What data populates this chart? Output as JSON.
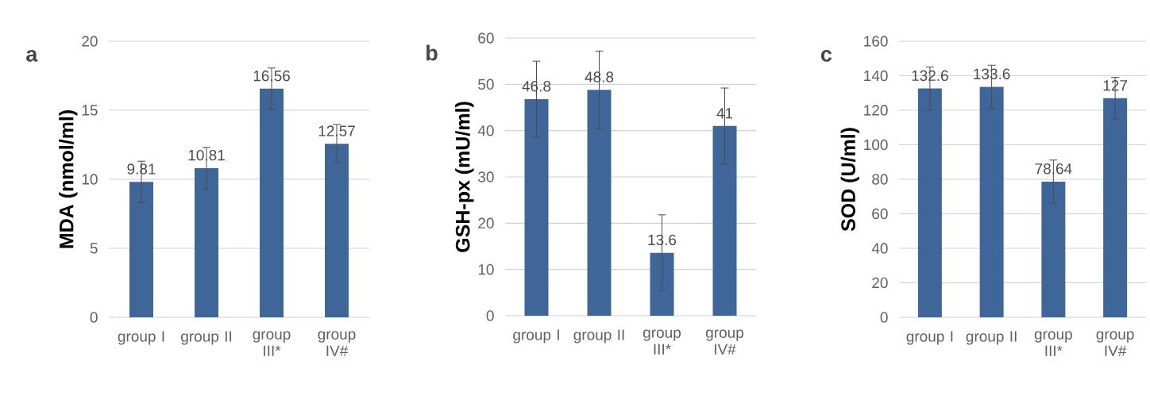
{
  "chart_data": [
    {
      "type": "bar",
      "title": "a",
      "ylabel": "MDA (nmol/ml)",
      "categories": [
        "group I",
        "group II",
        "group III*",
        "group IV#"
      ],
      "values": [
        9.81,
        10.81,
        16.56,
        12.57
      ],
      "errors": [
        1.5,
        1.5,
        1.5,
        1.4
      ],
      "color": "#3e6699",
      "ylim": [
        0,
        20
      ],
      "yticks": [
        0,
        5,
        10,
        15,
        20
      ],
      "grid": "y",
      "data_labels": true
    },
    {
      "type": "bar",
      "title": "b",
      "ylabel": "GSH-px (mU/ml)",
      "categories": [
        "group I",
        "group II",
        "group III*",
        "group IV#"
      ],
      "values": [
        46.8,
        48.8,
        13.6,
        41
      ],
      "errors": [
        8.2,
        8.4,
        8.2,
        8.2
      ],
      "color": "#3e6699",
      "ylim": [
        0,
        60
      ],
      "yticks": [
        0,
        10,
        20,
        30,
        40,
        50,
        60
      ],
      "grid": "y",
      "data_labels": true
    },
    {
      "type": "bar",
      "title": "c",
      "ylabel": "SOD (U/ml)",
      "categories": [
        "group I",
        "group II",
        "group III*",
        "group IV#"
      ],
      "values": [
        132.6,
        133.6,
        78.64,
        127
      ],
      "errors": [
        12.5,
        12.5,
        12.5,
        12
      ],
      "color": "#3e6699",
      "ylim": [
        0,
        160
      ],
      "yticks": [
        0,
        20,
        40,
        60,
        80,
        100,
        120,
        140,
        160
      ],
      "grid": "y",
      "data_labels": true
    }
  ]
}
